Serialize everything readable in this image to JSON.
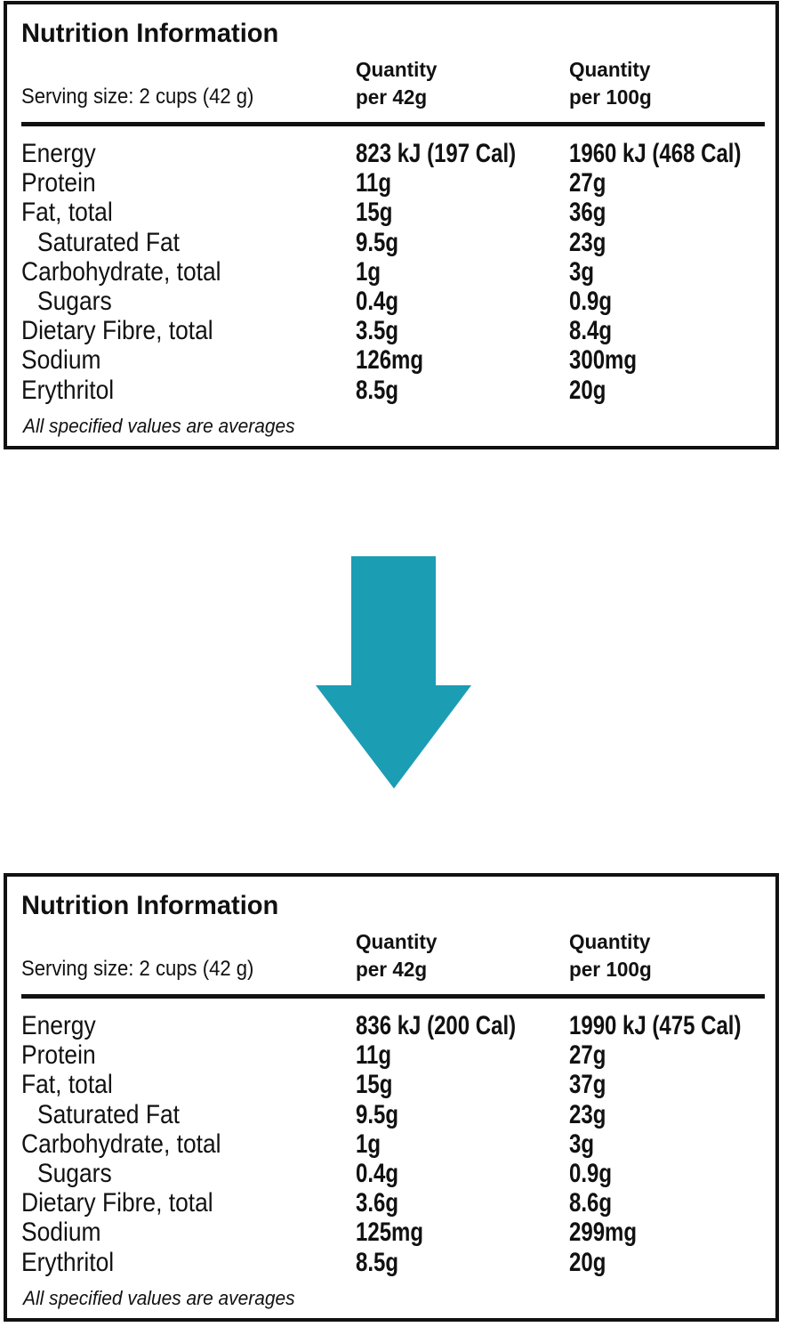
{
  "panels": [
    {
      "title": "Nutrition Information",
      "serving_size": "Serving size: 2 cups (42 g)",
      "columns": [
        [
          "Quantity",
          "per 42g"
        ],
        [
          "Quantity",
          "per 100g"
        ]
      ],
      "rows": [
        {
          "nutrient": "Energy",
          "values": [
            "823 kJ (197 Cal)",
            "1960 kJ (468 Cal)"
          ]
        },
        {
          "nutrient": "Protein",
          "values": [
            "11g",
            "27g"
          ]
        },
        {
          "nutrient": "Fat, total",
          "values": [
            "15g",
            "36g"
          ]
        },
        {
          "nutrient": "Saturated Fat",
          "values": [
            "9.5g",
            "23g"
          ],
          "sub": true
        },
        {
          "nutrient": "Carbohydrate, total",
          "values": [
            "1g",
            "3g"
          ]
        },
        {
          "nutrient": "Sugars",
          "values": [
            "0.4g",
            "0.9g"
          ],
          "sub": true
        },
        {
          "nutrient": "Dietary Fibre, total",
          "values": [
            "3.5g",
            "8.4g"
          ]
        },
        {
          "nutrient": "Sodium",
          "values": [
            "126mg",
            "300mg"
          ]
        },
        {
          "nutrient": "Erythritol",
          "values": [
            "8.5g",
            "20g"
          ]
        }
      ],
      "footnote": "All specified values are averages"
    },
    {
      "title": "Nutrition Information",
      "serving_size": "Serving size: 2 cups (42 g)",
      "columns": [
        [
          "Quantity",
          "per 42g"
        ],
        [
          "Quantity",
          "per 100g"
        ]
      ],
      "rows": [
        {
          "nutrient": "Energy",
          "values": [
            "836 kJ (200 Cal)",
            "1990 kJ (475 Cal)"
          ]
        },
        {
          "nutrient": "Protein",
          "values": [
            "11g",
            "27g"
          ]
        },
        {
          "nutrient": "Fat, total",
          "values": [
            "15g",
            "37g"
          ]
        },
        {
          "nutrient": "Saturated Fat",
          "values": [
            "9.5g",
            "23g"
          ],
          "sub": true
        },
        {
          "nutrient": "Carbohydrate, total",
          "values": [
            "1g",
            "3g"
          ]
        },
        {
          "nutrient": "Sugars",
          "values": [
            "0.4g",
            "0.9g"
          ],
          "sub": true
        },
        {
          "nutrient": "Dietary Fibre, total",
          "values": [
            "3.6g",
            "8.6g"
          ]
        },
        {
          "nutrient": "Sodium",
          "values": [
            "125mg",
            "299mg"
          ]
        },
        {
          "nutrient": "Erythritol",
          "values": [
            "8.5g",
            "20g"
          ]
        }
      ],
      "footnote": "All specified values are averages"
    }
  ]
}
